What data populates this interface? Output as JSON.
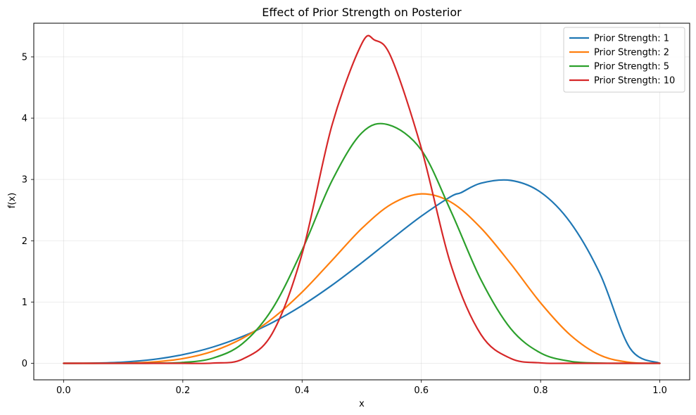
{
  "chart_data": {
    "type": "line",
    "title": "Effect of Prior Strength on Posterior",
    "xlabel": "x",
    "ylabel": "f(x)",
    "xlim": [
      -0.05,
      1.05
    ],
    "ylim": [
      -0.27,
      5.55
    ],
    "xticks": [
      0.0,
      0.2,
      0.4,
      0.6,
      0.8,
      1.0
    ],
    "xtick_labels": [
      "0.0",
      "0.2",
      "0.4",
      "0.6",
      "0.8",
      "1.0"
    ],
    "yticks": [
      0,
      1,
      2,
      3,
      4,
      5
    ],
    "ytick_labels": [
      "0",
      "1",
      "2",
      "3",
      "4",
      "5"
    ],
    "grid": true,
    "legend_position": "top-right",
    "series": [
      {
        "name": "Prior Strength: 1",
        "color": "#1f77b4",
        "x": [
          0.0,
          0.05,
          0.1,
          0.15,
          0.2,
          0.25,
          0.3,
          0.35,
          0.4,
          0.45,
          0.5,
          0.55,
          0.6,
          0.65,
          0.6667,
          0.7,
          0.75,
          0.8,
          0.85,
          0.9,
          0.95,
          1.0
        ],
        "y": [
          0.0,
          0.0025,
          0.0191,
          0.0619,
          0.1408,
          0.2637,
          0.4369,
          0.6637,
          0.9437,
          1.2731,
          1.6406,
          2.0266,
          2.4013,
          2.7239,
          2.7853,
          2.9393,
          2.9844,
          2.7922,
          2.2971,
          1.4528,
          0.2456,
          0.0
        ]
      },
      {
        "name": "Prior Strength: 2",
        "color": "#ff7f0e",
        "x": [
          0.0,
          0.05,
          0.1,
          0.15,
          0.2,
          0.25,
          0.3,
          0.35,
          0.4,
          0.45,
          0.5,
          0.55,
          0.6,
          0.65,
          0.7,
          0.75,
          0.8,
          0.85,
          0.9,
          0.95,
          1.0
        ],
        "y": [
          0.0,
          0.0,
          0.0033,
          0.0214,
          0.0764,
          0.1961,
          0.4072,
          0.7284,
          1.1611,
          1.6775,
          2.1997,
          2.5986,
          2.7648,
          2.6282,
          2.2074,
          1.6228,
          0.9855,
          0.4596,
          0.1312,
          0.0144,
          0.0
        ]
      },
      {
        "name": "Prior Strength: 5",
        "color": "#2ca02c",
        "x": [
          0.0,
          0.1,
          0.15,
          0.2,
          0.25,
          0.3,
          0.35,
          0.4,
          0.45,
          0.5,
          0.545,
          0.6,
          0.65,
          0.7,
          0.75,
          0.8,
          0.85,
          0.9,
          0.95,
          1.0
        ],
        "y": [
          0.0,
          0.0,
          0.0014,
          0.0138,
          0.0831,
          0.3214,
          0.8878,
          1.8468,
          2.9772,
          3.7592,
          3.8916,
          3.4796,
          2.4732,
          1.3624,
          0.5639,
          0.1684,
          0.0321,
          0.0031,
          0.0,
          0.0
        ]
      },
      {
        "name": "Prior Strength: 10",
        "color": "#d62728",
        "x": [
          0.0,
          0.15,
          0.2,
          0.25,
          0.3,
          0.35,
          0.4,
          0.45,
          0.5,
          0.5217,
          0.55,
          0.6,
          0.65,
          0.7,
          0.75,
          0.8,
          0.85,
          1.0
        ],
        "y": [
          0.0,
          0.0,
          0.0,
          0.0033,
          0.0677,
          0.4887,
          1.7874,
          3.8811,
          5.2146,
          5.2744,
          4.9802,
          3.5087,
          1.5942,
          0.4689,
          0.0786,
          0.0065,
          0.0,
          0.0
        ]
      }
    ]
  }
}
